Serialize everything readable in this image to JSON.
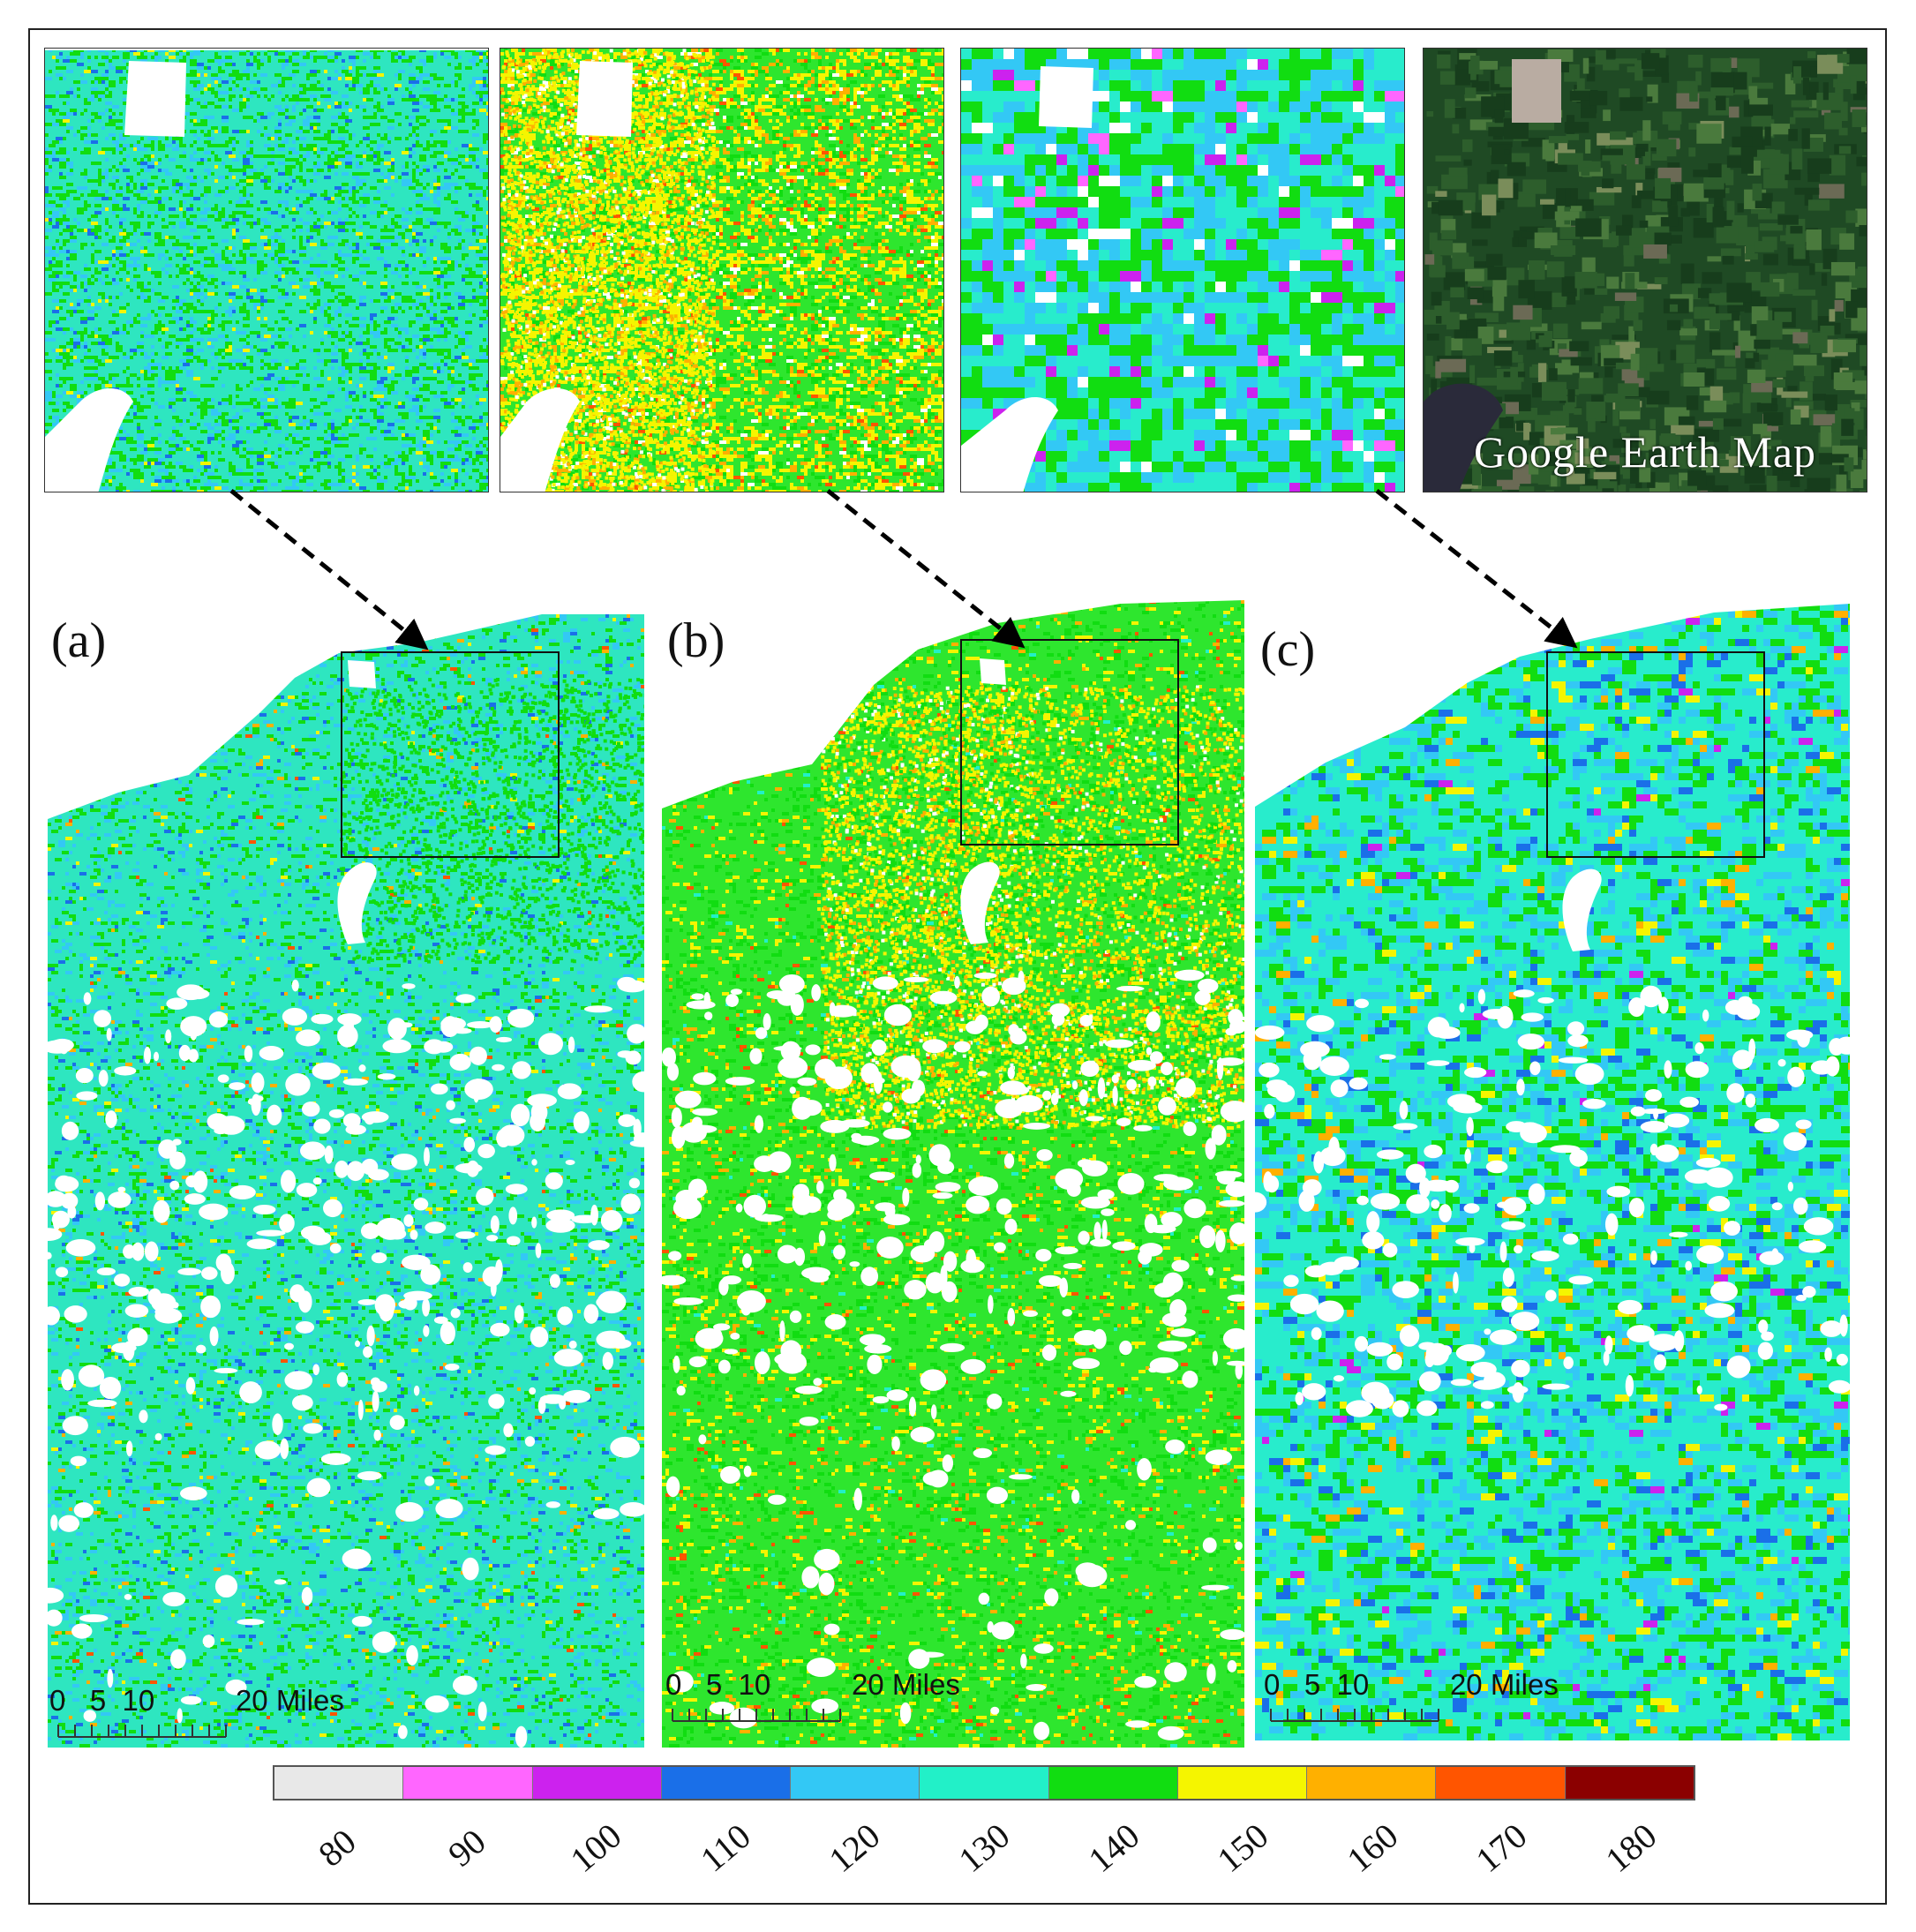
{
  "insets": {
    "google_label": "Google Earth Map"
  },
  "panels": {
    "a": {
      "label": "(a)"
    },
    "b": {
      "label": "(b)"
    },
    "c": {
      "label": "(c)"
    }
  },
  "scale_bar": {
    "text": "0   5  10          20 Miles"
  },
  "legend": {
    "classes": [
      {
        "value": "80",
        "color": "#e8e8e8"
      },
      {
        "value": "90",
        "color": "#ff66ff"
      },
      {
        "value": "100",
        "color": "#cc22ee"
      },
      {
        "value": "110",
        "color": "#1a6fe8"
      },
      {
        "value": "120",
        "color": "#33c8f5"
      },
      {
        "value": "130",
        "color": "#22f0c8"
      },
      {
        "value": "140",
        "color": "#11dd11"
      },
      {
        "value": "150",
        "color": "#f5f500"
      },
      {
        "value": "160",
        "color": "#ffb000"
      },
      {
        "value": "170",
        "color": "#ff5500"
      },
      {
        "value": "180",
        "color": "#8b0000"
      }
    ]
  },
  "colors": {
    "a_base": "#2ee6c0",
    "b_base": "#2ee62e",
    "c_base": "#28eccc",
    "google_base": "#1f4a24"
  }
}
